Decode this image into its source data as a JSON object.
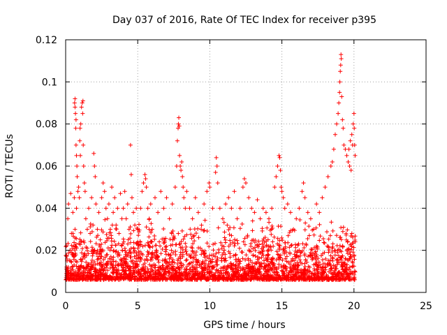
{
  "chart_data": {
    "type": "scatter",
    "title": "Day 037 of 2016, Rate Of TEC Index for receiver p395",
    "xlabel": "GPS time / hours",
    "ylabel": "ROTI / TECUs",
    "xlim": [
      0,
      25
    ],
    "ylim": [
      0,
      0.12
    ],
    "x_ticks": [
      0,
      5,
      10,
      15,
      20,
      25
    ],
    "x_tick_labels": [
      "0",
      "5",
      "10",
      "15",
      "20",
      "25"
    ],
    "y_ticks": [
      0,
      0.02,
      0.04,
      0.06,
      0.08,
      0.1,
      0.12
    ],
    "y_tick_labels": [
      "0",
      "0.02",
      "0.04",
      "0.06",
      "0.08",
      "0.1",
      "0.12"
    ],
    "grid": true,
    "marker": "+",
    "color": "#ff0000",
    "series": [
      {
        "values_xy": [
          [
            0.1,
            0.015
          ],
          [
            0.15,
            0.035
          ],
          [
            0.2,
            0.042
          ],
          [
            0.3,
            0.02
          ],
          [
            0.35,
            0.047
          ],
          [
            0.4,
            0.028
          ],
          [
            0.45,
            0.012
          ],
          [
            0.5,
            0.038
          ],
          [
            0.55,
            0.018
          ],
          [
            0.6,
            0.045
          ],
          [
            0.65,
            0.03
          ],
          [
            0.7,
            0.008
          ],
          [
            0.75,
            0.04
          ],
          [
            0.62,
            0.09
          ],
          [
            0.65,
            0.088
          ],
          [
            0.68,
            0.085
          ],
          [
            0.7,
            0.078
          ],
          [
            0.72,
            0.07
          ],
          [
            0.75,
            0.065
          ],
          [
            0.78,
            0.06
          ],
          [
            0.8,
            0.055
          ],
          [
            0.65,
            0.092
          ],
          [
            0.72,
            0.082
          ],
          [
            0.85,
            0.048
          ],
          [
            0.9,
            0.05
          ],
          [
            0.95,
            0.045
          ],
          [
            1.0,
            0.078
          ],
          [
            1.05,
            0.08
          ],
          [
            1.1,
            0.088
          ],
          [
            1.15,
            0.09
          ],
          [
            1.2,
            0.091
          ],
          [
            1.18,
            0.085
          ],
          [
            1.22,
            0.07
          ],
          [
            1.25,
            0.06
          ],
          [
            1.3,
            0.052
          ],
          [
            1.35,
            0.048
          ],
          [
            0.98,
            0.072
          ],
          [
            1.02,
            0.065
          ],
          [
            1.4,
            0.035
          ],
          [
            1.5,
            0.03
          ],
          [
            1.6,
            0.04
          ],
          [
            1.7,
            0.028
          ],
          [
            1.8,
            0.045
          ],
          [
            1.9,
            0.032
          ],
          [
            1.95,
            0.066
          ],
          [
            2.0,
            0.06
          ],
          [
            2.05,
            0.055
          ],
          [
            2.1,
            0.042
          ],
          [
            2.2,
            0.03
          ],
          [
            2.3,
            0.038
          ],
          [
            2.4,
            0.025
          ],
          [
            2.5,
            0.045
          ],
          [
            2.6,
            0.052
          ],
          [
            2.7,
            0.048
          ],
          [
            2.8,
            0.04
          ],
          [
            2.9,
            0.035
          ],
          [
            3.0,
            0.042
          ],
          [
            3.1,
            0.03
          ],
          [
            3.2,
            0.05
          ],
          [
            3.3,
            0.038
          ],
          [
            3.4,
            0.045
          ],
          [
            3.5,
            0.032
          ],
          [
            3.6,
            0.04
          ],
          [
            3.7,
            0.028
          ],
          [
            3.8,
            0.047
          ],
          [
            3.9,
            0.035
          ],
          [
            4.0,
            0.04
          ],
          [
            4.1,
            0.048
          ],
          [
            4.2,
            0.035
          ],
          [
            4.3,
            0.042
          ],
          [
            4.4,
            0.03
          ],
          [
            4.5,
            0.07
          ],
          [
            4.55,
            0.056
          ],
          [
            4.6,
            0.045
          ],
          [
            4.7,
            0.038
          ],
          [
            4.8,
            0.032
          ],
          [
            4.9,
            0.04
          ],
          [
            5.0,
            0.03
          ],
          [
            5.2,
            0.04
          ],
          [
            5.3,
            0.048
          ],
          [
            5.4,
            0.052
          ],
          [
            5.5,
            0.056
          ],
          [
            5.55,
            0.054
          ],
          [
            5.6,
            0.05
          ],
          [
            5.7,
            0.04
          ],
          [
            5.8,
            0.035
          ],
          [
            5.9,
            0.042
          ],
          [
            6.0,
            0.03
          ],
          [
            6.2,
            0.045
          ],
          [
            6.4,
            0.038
          ],
          [
            6.6,
            0.048
          ],
          [
            6.8,
            0.04
          ],
          [
            7.0,
            0.045
          ],
          [
            7.2,
            0.035
          ],
          [
            7.4,
            0.042
          ],
          [
            7.6,
            0.05
          ],
          [
            7.7,
            0.06
          ],
          [
            7.75,
            0.072
          ],
          [
            7.8,
            0.078
          ],
          [
            7.82,
            0.08
          ],
          [
            7.85,
            0.083
          ],
          [
            7.88,
            0.079
          ],
          [
            7.9,
            0.065
          ],
          [
            7.95,
            0.06
          ],
          [
            8.0,
            0.058
          ],
          [
            8.05,
            0.062
          ],
          [
            8.1,
            0.055
          ],
          [
            8.15,
            0.05
          ],
          [
            8.2,
            0.045
          ],
          [
            8.3,
            0.04
          ],
          [
            8.4,
            0.048
          ],
          [
            8.6,
            0.04
          ],
          [
            8.8,
            0.035
          ],
          [
            9.0,
            0.045
          ],
          [
            9.2,
            0.038
          ],
          [
            9.4,
            0.03
          ],
          [
            9.6,
            0.042
          ],
          [
            9.8,
            0.048
          ],
          [
            9.95,
            0.052
          ],
          [
            10.0,
            0.05
          ],
          [
            10.2,
            0.04
          ],
          [
            10.4,
            0.057
          ],
          [
            10.45,
            0.064
          ],
          [
            10.5,
            0.06
          ],
          [
            10.55,
            0.052
          ],
          [
            10.7,
            0.04
          ],
          [
            10.9,
            0.035
          ],
          [
            11.1,
            0.042
          ],
          [
            11.3,
            0.045
          ],
          [
            11.5,
            0.04
          ],
          [
            11.7,
            0.048
          ],
          [
            11.9,
            0.035
          ],
          [
            12.1,
            0.04
          ],
          [
            12.3,
            0.05
          ],
          [
            12.4,
            0.054
          ],
          [
            12.5,
            0.052
          ],
          [
            12.7,
            0.045
          ],
          [
            12.9,
            0.04
          ],
          [
            13.1,
            0.038
          ],
          [
            13.3,
            0.044
          ],
          [
            13.5,
            0.035
          ],
          [
            13.7,
            0.04
          ],
          [
            13.9,
            0.038
          ],
          [
            14.1,
            0.035
          ],
          [
            14.3,
            0.04
          ],
          [
            14.5,
            0.05
          ],
          [
            14.6,
            0.055
          ],
          [
            14.7,
            0.06
          ],
          [
            14.8,
            0.065
          ],
          [
            14.85,
            0.064
          ],
          [
            14.9,
            0.058
          ],
          [
            14.95,
            0.05
          ],
          [
            15.0,
            0.048
          ],
          [
            15.1,
            0.045
          ],
          [
            15.2,
            0.04
          ],
          [
            15.4,
            0.042
          ],
          [
            15.6,
            0.038
          ],
          [
            15.8,
            0.03
          ],
          [
            16.0,
            0.035
          ],
          [
            16.2,
            0.04
          ],
          [
            16.4,
            0.048
          ],
          [
            16.5,
            0.052
          ],
          [
            16.6,
            0.045
          ],
          [
            16.8,
            0.038
          ],
          [
            17.0,
            0.035
          ],
          [
            17.2,
            0.03
          ],
          [
            17.4,
            0.042
          ],
          [
            17.6,
            0.038
          ],
          [
            17.8,
            0.045
          ],
          [
            18.0,
            0.05
          ],
          [
            18.2,
            0.055
          ],
          [
            18.4,
            0.06
          ],
          [
            18.5,
            0.062
          ],
          [
            18.6,
            0.068
          ],
          [
            18.7,
            0.075
          ],
          [
            18.8,
            0.08
          ],
          [
            18.9,
            0.085
          ],
          [
            18.95,
            0.09
          ],
          [
            19.0,
            0.095
          ],
          [
            19.02,
            0.1
          ],
          [
            19.05,
            0.105
          ],
          [
            19.08,
            0.108
          ],
          [
            19.1,
            0.113
          ],
          [
            19.12,
            0.111
          ],
          [
            19.15,
            0.093
          ],
          [
            19.2,
            0.082
          ],
          [
            19.25,
            0.078
          ],
          [
            19.3,
            0.07
          ],
          [
            19.4,
            0.068
          ],
          [
            19.5,
            0.065
          ],
          [
            19.6,
            0.062
          ],
          [
            19.7,
            0.06
          ],
          [
            19.8,
            0.058
          ],
          [
            19.9,
            0.07
          ],
          [
            19.95,
            0.08
          ],
          [
            20.0,
            0.085
          ],
          [
            20.02,
            0.078
          ],
          [
            20.05,
            0.07
          ],
          [
            20.08,
            0.065
          ],
          [
            19.85,
            0.075
          ],
          [
            19.75,
            0.072
          ],
          [
            19.65,
            0.068
          ]
        ]
      }
    ]
  }
}
